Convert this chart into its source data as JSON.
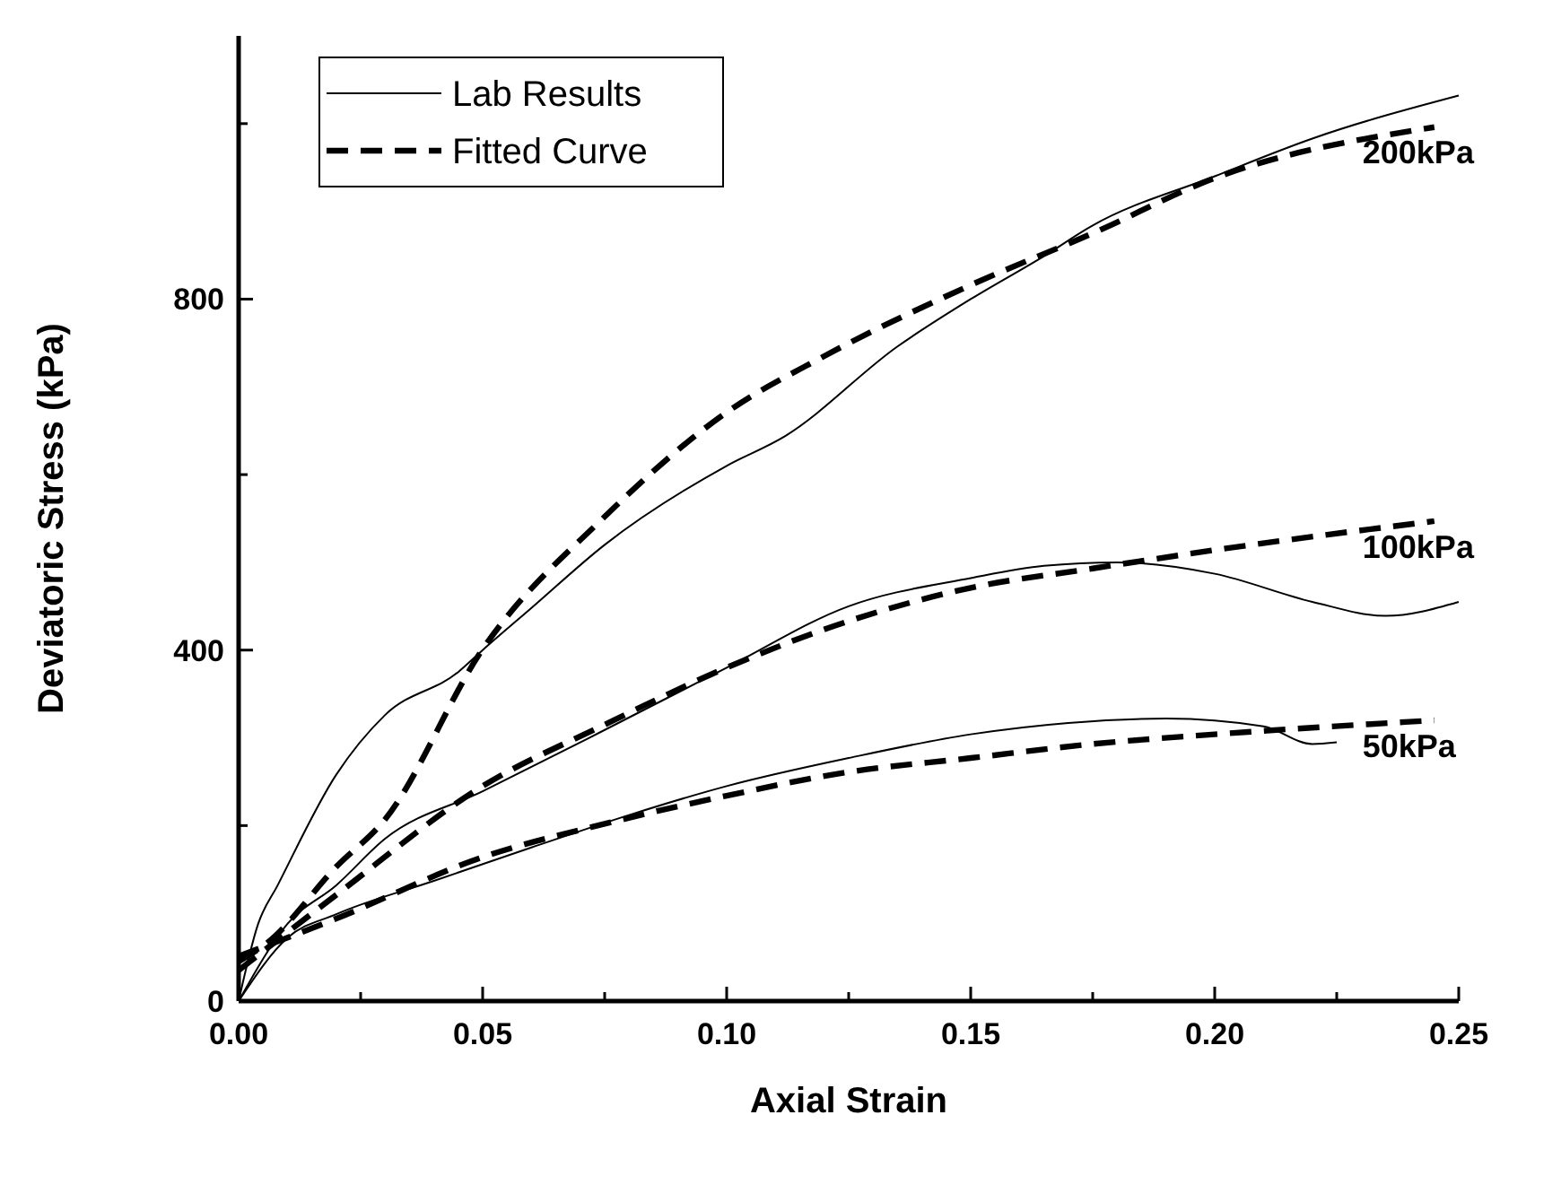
{
  "chart_data": {
    "type": "line",
    "xlabel": "Axial Strain",
    "ylabel": "Deviatoric Stress (kPa)",
    "xlim": [
      0,
      0.25
    ],
    "ylim": [
      0,
      1100
    ],
    "xticks": [
      {
        "value": 0,
        "label": "0.00"
      },
      {
        "value": 0.025,
        "label": null
      },
      {
        "value": 0.05,
        "label": "0.05"
      },
      {
        "value": 0.075,
        "label": null
      },
      {
        "value": 0.1,
        "label": "0.10"
      },
      {
        "value": 0.125,
        "label": null
      },
      {
        "value": 0.15,
        "label": "0.15"
      },
      {
        "value": 0.175,
        "label": null
      },
      {
        "value": 0.2,
        "label": "0.20"
      },
      {
        "value": 0.225,
        "label": null
      },
      {
        "value": 0.25,
        "label": "0.25"
      }
    ],
    "yticks": [
      0,
      {
        "value": 200,
        "label": null
      },
      400,
      {
        "value": 600,
        "label": null
      },
      800,
      {
        "value": 1000,
        "label": null
      }
    ],
    "grid": false,
    "legend": "top left",
    "marker": "none",
    "series": [
      {
        "name": "Lab Results",
        "color": "#000000",
        "line_style": "solid",
        "x": [
          0,
          0.004,
          0.008,
          0.02,
          0.03,
          0.045,
          0.05,
          0.06,
          0.075,
          0.1,
          0.112,
          0.135,
          0.15,
          0.165,
          0.175,
          0.2,
          0.22,
          0.25
        ],
        "values": [
          0,
          88,
          132,
          258,
          326,
          375,
          400,
          448,
          520,
          610,
          644,
          746,
          800,
          849,
          884,
          940,
          983,
          1032
        ]
      },
      {
        "name": "Fitted Curve",
        "color": "#000000",
        "line_style": "dashed",
        "x": [
          0,
          0.006,
          0.02,
          0.03,
          0.05,
          0.075,
          0.1,
          0.12,
          0.15,
          0.175,
          0.2,
          0.245
        ],
        "values": [
          45,
          67,
          153,
          207,
          401,
          552,
          671,
          735,
          816,
          875,
          938,
          996
        ]
      },
      {
        "color": "#000000",
        "line_style": "solid",
        "x": [
          0,
          0.01,
          0.02,
          0.03,
          0.05,
          0.075,
          0.1,
          0.125,
          0.15,
          0.165,
          0.18,
          0.2,
          0.22,
          0.235,
          0.25
        ],
        "values": [
          0,
          88,
          132,
          185,
          239,
          309,
          380,
          450,
          482,
          496,
          500,
          487,
          455,
          439,
          455
        ]
      },
      {
        "color": "#000000",
        "line_style": "dashed",
        "x": [
          0,
          0.02,
          0.05,
          0.075,
          0.1,
          0.125,
          0.15,
          0.175,
          0.2,
          0.245
        ],
        "values": [
          35,
          121,
          245,
          315,
          380,
          433,
          471,
          493,
          514,
          547
        ]
      },
      {
        "color": "#000000",
        "line_style": "solid",
        "x": [
          0,
          0.01,
          0.02,
          0.04,
          0.06,
          0.08,
          0.1,
          0.125,
          0.15,
          0.17,
          0.19,
          0.21,
          0.22,
          0.225
        ],
        "values": [
          0,
          72,
          99,
          137,
          175,
          212,
          245,
          277,
          304,
          317,
          322,
          313,
          293,
          295
        ]
      },
      {
        "color": "#000000",
        "line_style": "dashed",
        "x": [
          0,
          0.02,
          0.05,
          0.075,
          0.1,
          0.125,
          0.15,
          0.175,
          0.2,
          0.245
        ],
        "values": [
          51,
          94,
          164,
          202,
          234,
          261,
          277,
          293,
          304,
          320
        ]
      }
    ],
    "annotations": [
      "200kPa",
      "100kPa",
      "50kPa"
    ]
  }
}
